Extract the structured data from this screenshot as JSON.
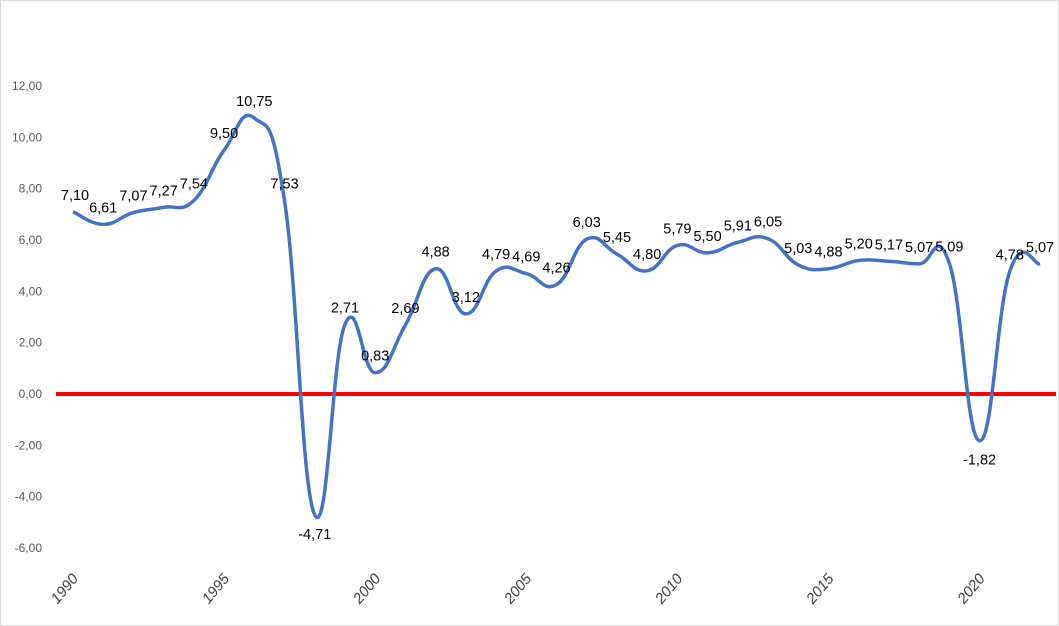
{
  "chart_data": {
    "type": "line",
    "title": "",
    "xlabel": "",
    "ylabel": "",
    "x": [
      1990,
      1991,
      1992,
      1993,
      1994,
      1995,
      1996,
      1997,
      1998,
      1999,
      2000,
      2001,
      2002,
      2003,
      2004,
      2005,
      2006,
      2007,
      2008,
      2009,
      2010,
      2011,
      2012,
      2013,
      2014,
      2015,
      2016,
      2017,
      2018,
      2019,
      2020,
      2021,
      2022
    ],
    "series": [
      {
        "values": [
          7.1,
          6.61,
          7.07,
          7.27,
          7.54,
          9.5,
          10.75,
          7.53,
          -4.71,
          2.71,
          0.83,
          2.69,
          4.88,
          3.12,
          4.79,
          4.69,
          4.26,
          6.03,
          5.45,
          4.8,
          5.79,
          5.5,
          5.91,
          6.05,
          5.03,
          4.88,
          5.2,
          5.17,
          5.07,
          5.09,
          -1.82,
          4.78,
          5.07
        ],
        "labels": [
          "7,10",
          "6,61",
          "7,07",
          "7,27",
          "7,54",
          "9,50",
          "10,75",
          "7,53",
          "-4,71",
          "2,71",
          "0,83",
          "2,69",
          "4,88",
          "3,12",
          "4,79",
          "4,69",
          "4,26",
          "6,03",
          "5,45",
          "4,80",
          "5,79",
          "5,50",
          "5,91",
          "6,05",
          "5,03",
          "4,88",
          "5,20",
          "5,17",
          "5,07",
          "5,09",
          "-1,82",
          "4,78",
          "5,07"
        ],
        "color": "#4472c4"
      }
    ],
    "x_tick_labels": [
      {
        "x": 1990,
        "label": "1990"
      },
      {
        "x": 1995,
        "label": "1995"
      },
      {
        "x": 2000,
        "label": "2000"
      },
      {
        "x": 2005,
        "label": "2005"
      },
      {
        "x": 2010,
        "label": "2010"
      },
      {
        "x": 2015,
        "label": "2015"
      },
      {
        "x": 2020,
        "label": "2020"
      }
    ],
    "y_ticks": [
      12,
      10,
      8,
      6,
      4,
      2,
      0,
      -2,
      -4,
      -6
    ],
    "y_tick_labels": [
      "12,00",
      "10,00",
      "8,00",
      "6,00",
      "4,00",
      "2,00",
      "0,00",
      "-2,00",
      "-4,00",
      "-6,00"
    ],
    "ylim": [
      -6,
      12
    ],
    "xlim": [
      1990,
      2022
    ],
    "reference_line": {
      "y": 0,
      "color": "#ff0000"
    },
    "grid": false,
    "legend": "none"
  }
}
